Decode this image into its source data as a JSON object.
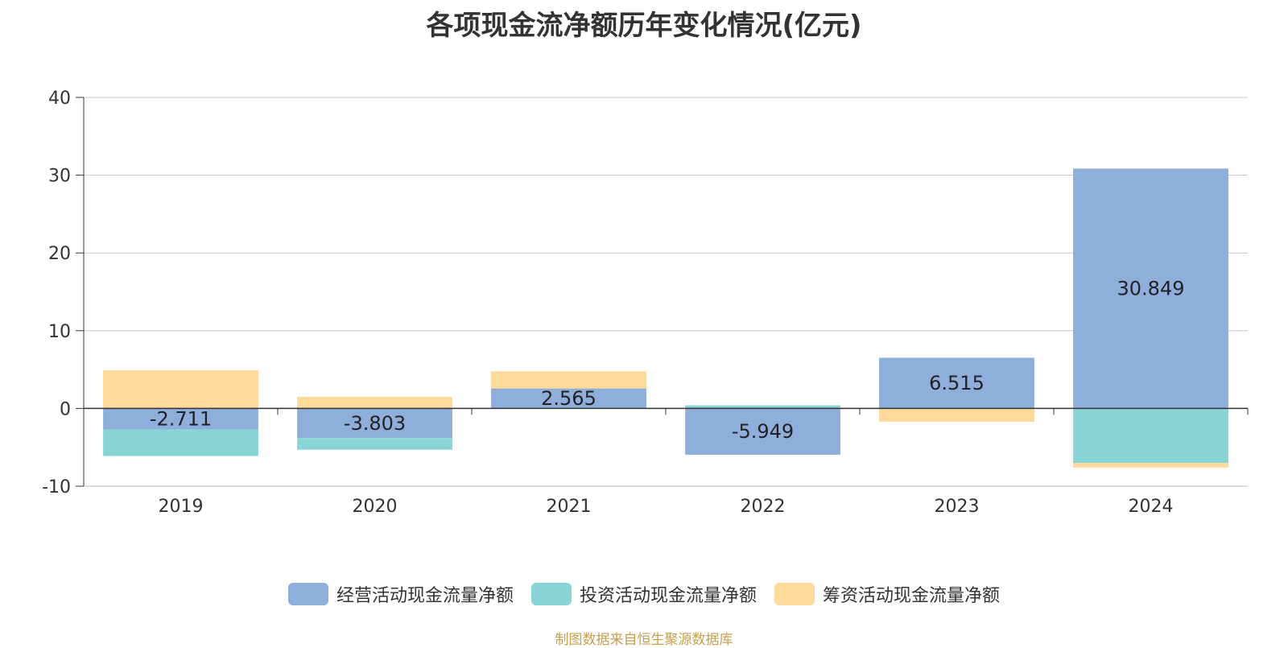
{
  "chart_data": {
    "type": "bar",
    "stacked": true,
    "title": "各项现金流净额历年变化情况(亿元)",
    "categories": [
      "2019",
      "2020",
      "2021",
      "2022",
      "2023",
      "2024"
    ],
    "series": [
      {
        "name": "经营活动现金流量净额",
        "color": "#8eaedb",
        "values": [
          -2.711,
          -3.803,
          2.565,
          -5.949,
          6.515,
          30.849
        ],
        "labels": [
          "-2.711",
          "-3.803",
          "2.565",
          "-5.949",
          "6.515",
          "30.849"
        ]
      },
      {
        "name": "投资活动现金流量净额",
        "color": "#88d5d8",
        "values": [
          -3.4,
          -1.5,
          0.0,
          0.4,
          0.0,
          -7.0
        ]
      },
      {
        "name": "筹资活动现金流量净额",
        "color": "#fdd99a",
        "values": [
          4.9,
          1.5,
          2.2,
          0.0,
          -1.7,
          -0.6
        ]
      }
    ],
    "ylim": [
      -10,
      40
    ],
    "yticks": [
      "40",
      "30",
      "20",
      "10",
      "0",
      "-10"
    ],
    "ytick_values": [
      40,
      30,
      20,
      10,
      0,
      -10
    ],
    "grid": true,
    "legend_position": "bottom-center"
  },
  "source_text": "制图数据来自恒生聚源数据库"
}
